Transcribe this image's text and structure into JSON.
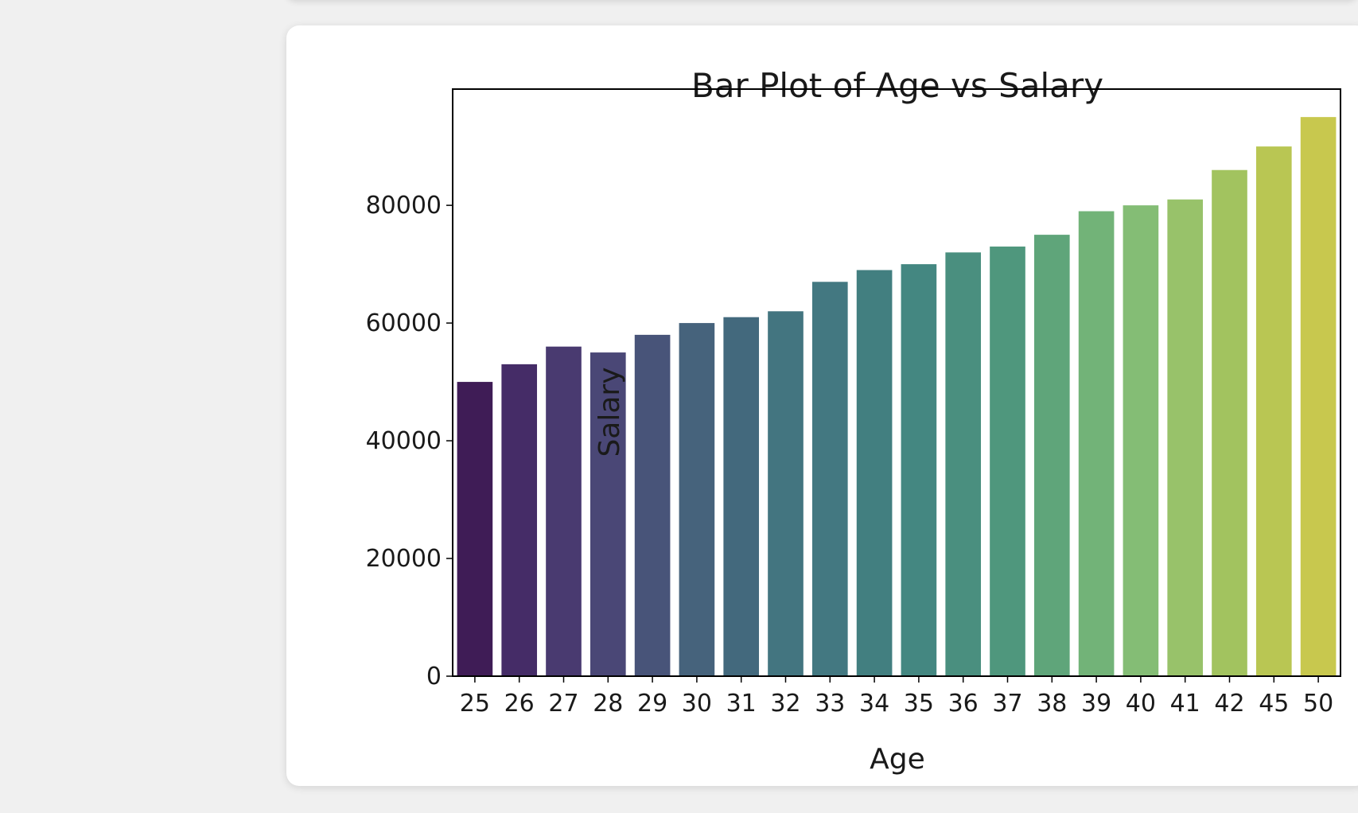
{
  "chart_data": {
    "type": "bar",
    "title": "Bar Plot of Age vs Salary",
    "xlabel": "Age",
    "ylabel": "Salary",
    "categories": [
      "25",
      "26",
      "27",
      "28",
      "29",
      "30",
      "31",
      "32",
      "33",
      "34",
      "35",
      "36",
      "37",
      "38",
      "39",
      "40",
      "41",
      "42",
      "45",
      "50"
    ],
    "values": [
      50000,
      53000,
      56000,
      55000,
      58000,
      60000,
      61000,
      62000,
      67000,
      69000,
      70000,
      72000,
      73000,
      75000,
      79000,
      80000,
      81000,
      86000,
      90000,
      95000
    ],
    "ylim": [
      0,
      99750
    ],
    "yticks": [
      0,
      20000,
      40000,
      60000,
      80000
    ],
    "grid": false,
    "colors": [
      "#3f1c56",
      "#452c67",
      "#493a70",
      "#4a4776",
      "#485479",
      "#46637c",
      "#43697d",
      "#437580",
      "#437881",
      "#427f80",
      "#448781",
      "#4a8f7f",
      "#4f977d",
      "#5fa57a",
      "#72b378",
      "#84bd75",
      "#98c26a",
      "#a2c35f",
      "#b9c653",
      "#c8c84e"
    ]
  }
}
